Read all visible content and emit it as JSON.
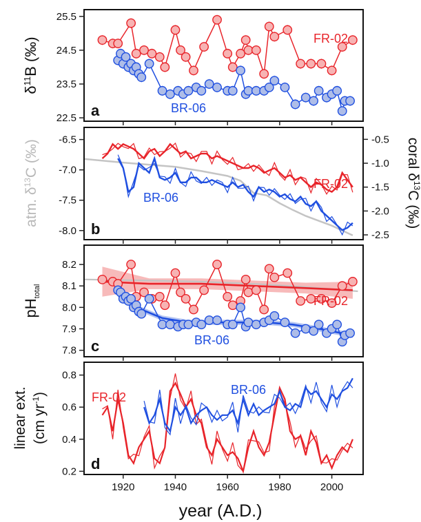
{
  "figure": {
    "x_axis_label": "year (A.D.)",
    "x_ticks": [
      1920,
      1940,
      1960,
      1980,
      2000
    ],
    "x_range": [
      1905,
      2012
    ]
  },
  "colors": {
    "fr02": "#e8242a",
    "br06": "#1f4fe0",
    "atm": "#c4c4c4",
    "fr02_band": "#f4a3a3",
    "br06_band": "#9cb2ee",
    "br06_fill": "#aebde8",
    "fr02_fill": "#f7b3b3"
  },
  "chart_data": [
    {
      "panel": "a",
      "type": "scatter",
      "ylabel": "δ11B (‰)",
      "ylim": [
        22.4,
        25.7
      ],
      "y_ticks": [
        22.5,
        23.5,
        24.5,
        25.5
      ],
      "series": [
        {
          "name": "FR-02",
          "x": [
            1912,
            1916,
            1918,
            1923,
            1925,
            1928,
            1931,
            1934,
            1936,
            1940,
            1942,
            1944,
            1947,
            1951,
            1956,
            1960,
            1962,
            1965,
            1967,
            1968,
            1971,
            1974,
            1976,
            1978,
            1983,
            1988,
            1992,
            1996,
            2000,
            2004,
            2008
          ],
          "y": [
            24.8,
            24.7,
            24.7,
            25.3,
            24.4,
            24.5,
            24.4,
            24.3,
            24.0,
            25.1,
            24.5,
            24.3,
            23.9,
            24.6,
            25.4,
            24.4,
            24.0,
            24.4,
            24.8,
            24.5,
            24.5,
            23.8,
            25.2,
            24.9,
            25.1,
            24.1,
            24.1,
            24.1,
            23.9,
            24.6,
            24.8
          ]
        },
        {
          "name": "BR-06",
          "x": [
            1918,
            1919,
            1920,
            1921,
            1922,
            1923,
            1924,
            1925,
            1926,
            1927,
            1930,
            1935,
            1938,
            1941,
            1943,
            1945,
            1948,
            1950,
            1953,
            1956,
            1960,
            1962,
            1965,
            1967,
            1968,
            1971,
            1974,
            1976,
            1978,
            1982,
            1986,
            1990,
            1993,
            1995,
            1998,
            2000,
            2002,
            2004,
            2005,
            2007
          ],
          "y": [
            24.2,
            24.4,
            24.1,
            24.3,
            24.0,
            24.1,
            23.9,
            24.0,
            23.8,
            23.7,
            24.1,
            23.3,
            23.2,
            23.3,
            23.2,
            23.3,
            23.4,
            23.3,
            23.5,
            23.4,
            23.3,
            23.3,
            23.9,
            23.2,
            23.3,
            23.3,
            23.3,
            23.4,
            23.6,
            23.4,
            22.9,
            23.1,
            23.0,
            23.3,
            23.1,
            23.2,
            23.3,
            22.7,
            23.0,
            23.0
          ]
        }
      ],
      "labels": [
        "FR-02",
        "BR-06"
      ]
    },
    {
      "panel": "b",
      "type": "line",
      "ylabel": "atm. δ13C (‰)",
      "ylim": [
        -8.15,
        -6.3
      ],
      "y_ticks": [
        -6.5,
        -7.0,
        -7.5,
        -8.0
      ],
      "ylabel_right": "coral δ13C (‰)",
      "ylim_right": [
        -2.6,
        -0.25
      ],
      "y_ticks_right": [
        -0.5,
        -1.0,
        -1.5,
        -2.0,
        -2.5
      ],
      "atm_series": {
        "x": [
          1905,
          1920,
          1940,
          1950,
          1960,
          1965,
          1970,
          1975,
          1980,
          1985,
          1990,
          1995,
          2000,
          2005,
          2008
        ],
        "y": [
          -6.82,
          -6.88,
          -6.95,
          -7.02,
          -7.1,
          -7.18,
          -7.38,
          -7.42,
          -7.55,
          -7.66,
          -7.76,
          -7.84,
          -7.92,
          -8.02,
          -8.08
        ]
      },
      "series": [
        {
          "name": "FR-02",
          "x": [
            1912,
            1914,
            1916,
            1918,
            1920,
            1922,
            1924,
            1926,
            1928,
            1930,
            1932,
            1934,
            1936,
            1938,
            1940,
            1942,
            1944,
            1946,
            1948,
            1950,
            1952,
            1954,
            1956,
            1958,
            1960,
            1962,
            1964,
            1966,
            1968,
            1970,
            1972,
            1974,
            1976,
            1978,
            1980,
            1982,
            1984,
            1986,
            1988,
            1990,
            1992,
            1994,
            1996,
            1998,
            2000,
            2002,
            2004,
            2006,
            2008
          ],
          "y": [
            -0.9,
            -0.8,
            -0.6,
            -0.7,
            -0.6,
            -0.65,
            -0.7,
            -0.8,
            -0.9,
            -0.75,
            -0.7,
            -0.85,
            -0.75,
            -0.6,
            -0.7,
            -0.8,
            -0.75,
            -0.9,
            -0.85,
            -0.8,
            -0.8,
            -0.9,
            -0.85,
            -0.9,
            -0.95,
            -1.0,
            -1.05,
            -1.1,
            -1.1,
            -1.05,
            -1.1,
            -1.2,
            -1.15,
            -1.1,
            -1.2,
            -1.3,
            -1.25,
            -1.35,
            -1.3,
            -1.4,
            -1.5,
            -1.4,
            -1.45,
            -1.55,
            -1.6,
            -1.5,
            -1.2,
            -1.35,
            -1.5
          ]
        },
        {
          "name": "BR-06",
          "x": [
            1918,
            1920,
            1922,
            1924,
            1926,
            1928,
            1930,
            1932,
            1934,
            1936,
            1938,
            1940,
            1942,
            1944,
            1946,
            1948,
            1950,
            1952,
            1954,
            1956,
            1958,
            1960,
            1962,
            1964,
            1966,
            1968,
            1970,
            1972,
            1974,
            1976,
            1978,
            1980,
            1982,
            1984,
            1986,
            1988,
            1990,
            1992,
            1994,
            1996,
            1998,
            2000,
            2002,
            2004,
            2006,
            2008
          ],
          "y": [
            -0.9,
            -1.1,
            -1.6,
            -1.5,
            -1.0,
            -1.1,
            -1.2,
            -0.9,
            -1.3,
            -1.35,
            -1.3,
            -1.2,
            -1.4,
            -1.4,
            -1.3,
            -1.3,
            -1.4,
            -1.4,
            -1.35,
            -1.4,
            -1.45,
            -1.5,
            -1.4,
            -1.5,
            -1.45,
            -1.6,
            -1.7,
            -1.5,
            -1.6,
            -1.55,
            -1.6,
            -1.7,
            -1.65,
            -1.75,
            -1.8,
            -1.7,
            -1.85,
            -1.9,
            -1.8,
            -2.0,
            -2.1,
            -2.2,
            -2.3,
            -2.4,
            -2.35,
            -2.25
          ]
        }
      ],
      "labels": [
        "FR-02",
        "BR-06"
      ]
    },
    {
      "panel": "c",
      "type": "scatter",
      "ylabel": "pH",
      "ylabel_sub": "total",
      "ylim": [
        7.77,
        8.29
      ],
      "y_ticks": [
        7.8,
        7.9,
        8.0,
        8.1,
        8.2
      ],
      "atm_series": {
        "x": [
          1905,
          1930,
          1950,
          1970,
          1990,
          2010
        ],
        "y": [
          8.13,
          8.125,
          8.12,
          8.11,
          8.095,
          8.075
        ]
      },
      "series": [
        {
          "name": "FR-02",
          "x": [
            1912,
            1916,
            1918,
            1923,
            1925,
            1928,
            1931,
            1934,
            1936,
            1940,
            1942,
            1944,
            1947,
            1951,
            1956,
            1960,
            1962,
            1965,
            1967,
            1968,
            1971,
            1974,
            1976,
            1978,
            1983,
            1988,
            1992,
            1996,
            2000,
            2004,
            2008
          ],
          "y": [
            8.13,
            8.12,
            8.11,
            8.2,
            8.05,
            8.07,
            8.04,
            8.05,
            8.01,
            8.16,
            8.07,
            8.04,
            7.99,
            8.08,
            8.2,
            8.05,
            8.01,
            8.03,
            8.13,
            8.07,
            8.08,
            7.99,
            8.18,
            8.14,
            8.16,
            8.03,
            8.04,
            8.04,
            8.02,
            8.1,
            8.12
          ]
        },
        {
          "name": "BR-06",
          "x": [
            1918,
            1919,
            1920,
            1921,
            1922,
            1923,
            1924,
            1925,
            1926,
            1927,
            1930,
            1935,
            1938,
            1941,
            1943,
            1945,
            1948,
            1950,
            1953,
            1956,
            1960,
            1962,
            1965,
            1967,
            1968,
            1971,
            1974,
            1976,
            1978,
            1982,
            1986,
            1990,
            1993,
            1995,
            1998,
            2000,
            2002,
            2004,
            2005,
            2007
          ],
          "y": [
            8.08,
            8.07,
            8.04,
            8.05,
            8.03,
            8.04,
            8.0,
            8.01,
            7.98,
            7.97,
            8.04,
            7.92,
            7.92,
            7.91,
            7.92,
            7.92,
            7.93,
            7.92,
            7.94,
            7.94,
            7.92,
            7.92,
            8.0,
            7.91,
            7.93,
            7.92,
            7.93,
            7.94,
            7.96,
            7.93,
            7.88,
            7.9,
            7.89,
            7.92,
            7.88,
            7.9,
            7.92,
            7.84,
            7.87,
            7.88
          ]
        }
      ],
      "trend_fr02": {
        "x": [
          1912,
          1930,
          1950,
          1970,
          1990,
          2008
        ],
        "y": [
          8.12,
          8.11,
          8.11,
          8.1,
          8.09,
          8.08
        ]
      },
      "trend_br06": {
        "x": [
          1918,
          1925,
          1935,
          1945,
          1955,
          1965,
          1975,
          1985,
          1995,
          2008
        ],
        "y": [
          8.06,
          8.0,
          7.95,
          7.93,
          7.93,
          7.93,
          7.93,
          7.92,
          7.9,
          7.87
        ]
      },
      "labels": [
        "FR-02",
        "BR-06"
      ]
    },
    {
      "panel": "d",
      "type": "line",
      "ylabel_line1": "linear ext.",
      "ylabel_line2": "(cm yr",
      "ylabel_sup": "-1",
      "ylabel_close": ")",
      "ylim": [
        0.18,
        0.88
      ],
      "y_ticks": [
        0.2,
        0.4,
        0.6,
        0.8
      ],
      "series": [
        {
          "name": "FR-02",
          "x": [
            1912,
            1914,
            1916,
            1918,
            1920,
            1922,
            1924,
            1926,
            1928,
            1930,
            1932,
            1934,
            1936,
            1938,
            1940,
            1942,
            1944,
            1946,
            1948,
            1950,
            1952,
            1954,
            1956,
            1958,
            1960,
            1962,
            1964,
            1966,
            1968,
            1970,
            1972,
            1974,
            1976,
            1978,
            1980,
            1982,
            1984,
            1986,
            1988,
            1990,
            1992,
            1994,
            1996,
            1998,
            2000,
            2002,
            2004,
            2006,
            2008
          ],
          "y": [
            0.55,
            0.6,
            0.45,
            0.65,
            0.5,
            0.3,
            0.25,
            0.35,
            0.4,
            0.45,
            0.28,
            0.25,
            0.35,
            0.7,
            0.75,
            0.68,
            0.6,
            0.65,
            0.55,
            0.5,
            0.35,
            0.3,
            0.4,
            0.35,
            0.3,
            0.32,
            0.28,
            0.2,
            0.35,
            0.45,
            0.35,
            0.3,
            0.38,
            0.55,
            0.72,
            0.65,
            0.45,
            0.4,
            0.42,
            0.3,
            0.45,
            0.38,
            0.25,
            0.3,
            0.22,
            0.3,
            0.35,
            0.32,
            0.4
          ]
        },
        {
          "name": "BR-06",
          "x": [
            1928,
            1930,
            1932,
            1934,
            1936,
            1938,
            1940,
            1942,
            1944,
            1946,
            1948,
            1950,
            1952,
            1954,
            1956,
            1958,
            1960,
            1962,
            1964,
            1966,
            1968,
            1970,
            1972,
            1974,
            1976,
            1978,
            1980,
            1982,
            1984,
            1986,
            1988,
            1990,
            1992,
            1994,
            1996,
            1998,
            2000,
            2002,
            2004,
            2006,
            2008
          ],
          "y": [
            0.6,
            0.5,
            0.55,
            0.65,
            0.5,
            0.45,
            0.6,
            0.55,
            0.6,
            0.5,
            0.55,
            0.58,
            0.6,
            0.55,
            0.52,
            0.55,
            0.55,
            0.58,
            0.5,
            0.65,
            0.55,
            0.62,
            0.55,
            0.58,
            0.6,
            0.62,
            0.7,
            0.6,
            0.58,
            0.62,
            0.6,
            0.72,
            0.68,
            0.7,
            0.65,
            0.6,
            0.68,
            0.65,
            0.7,
            0.72,
            0.78
          ]
        }
      ],
      "labels": [
        "FR-02",
        "BR-06"
      ]
    }
  ]
}
